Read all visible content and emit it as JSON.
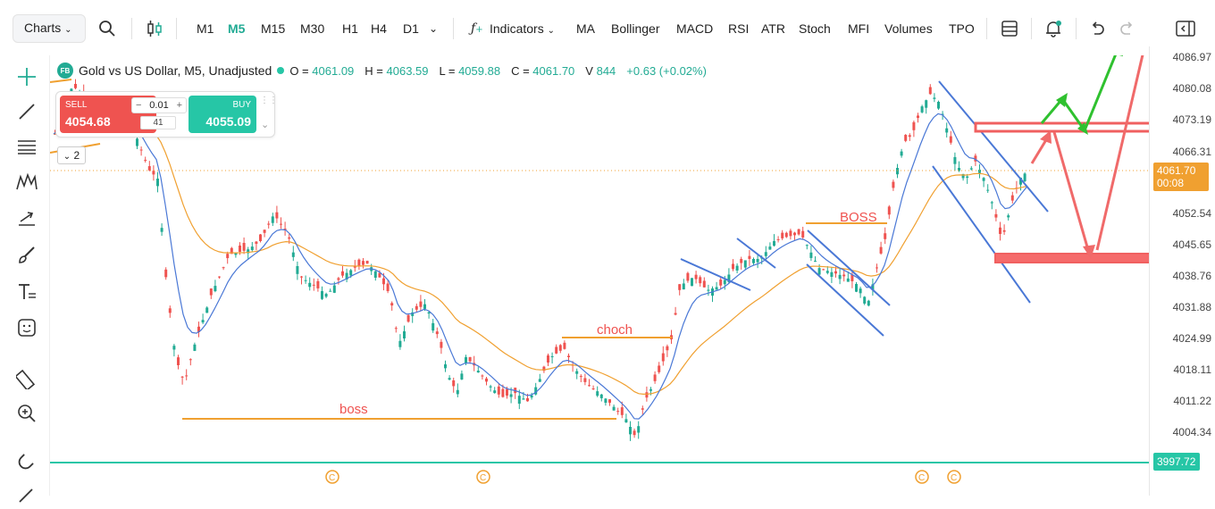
{
  "toolbar": {
    "charts_label": "Charts",
    "timeframes": [
      "M1",
      "M5",
      "M15",
      "M30",
      "H1",
      "H4",
      "D1"
    ],
    "active_timeframe": "M5",
    "indicators_label": "Indicators",
    "indicator_shortcuts": [
      "MA",
      "Bollinger",
      "MACD",
      "RSI",
      "ATR",
      "Stoch",
      "MFI",
      "Volumes",
      "TPO"
    ]
  },
  "legend": {
    "badge": "FB",
    "symbol": "Gold vs US Dollar, M5, Unadjusted",
    "o_label": "O =",
    "o_value": "4061.09",
    "h_label": "H =",
    "h_value": "4063.59",
    "l_label": "L =",
    "l_value": "4059.88",
    "c_label": "C =",
    "c_value": "4061.70",
    "v_label": "V",
    "v_value": "844",
    "change": "+0.63 (+0.02%)"
  },
  "trade": {
    "sell_label": "SELL",
    "sell_price": "4054.68",
    "buy_label": "BUY",
    "buy_price": "4055.09",
    "quantity": "0.01",
    "spread": "41"
  },
  "collapse_count": "2",
  "price_axis": {
    "labels": [
      "4086.97",
      "4080.08",
      "4073.19",
      "4066.31",
      "4052.54",
      "4045.65",
      "4038.76",
      "4031.88",
      "4024.99",
      "4018.11",
      "4011.22",
      "4004.34"
    ],
    "current_price": "4061.70",
    "countdown": "00:08",
    "line_price": "3997.72"
  },
  "annotations": {
    "boss_lower": "boss",
    "choch": "choch",
    "boss_upper": "BOSS"
  },
  "colors": {
    "up": "#22ab94",
    "down": "#ef5350",
    "ma_fast": "#4a78d6",
    "ma_slow": "#f0a030",
    "accent": "#22ab94"
  },
  "left_tools": [
    "crosshair-icon",
    "trendline-icon",
    "horizontal-lines-icon",
    "pattern-icon",
    "arrow-tool-icon",
    "brush-icon",
    "text-tool-icon",
    "emoji-icon",
    "ruler-icon",
    "zoom-icon",
    "magnet-icon",
    "pen-icon"
  ]
}
